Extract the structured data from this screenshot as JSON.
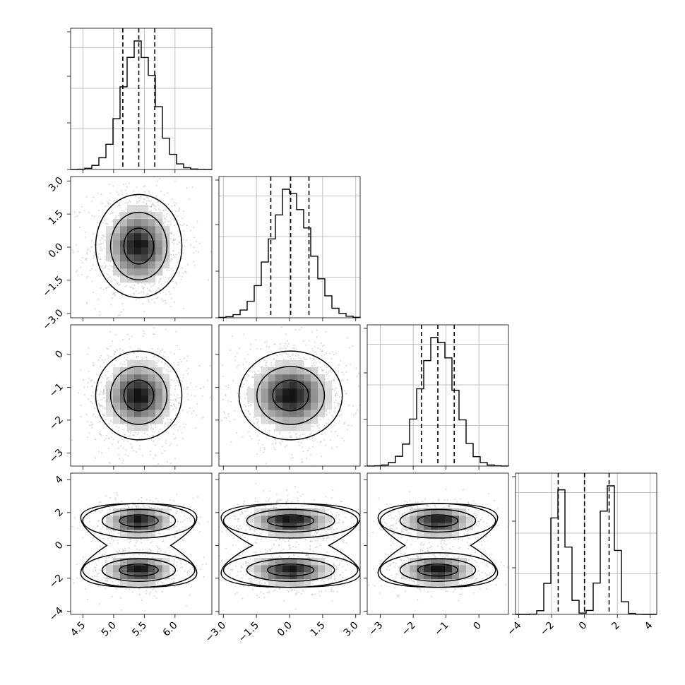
{
  "chart_data": {
    "type": "corner",
    "parameters": [
      {
        "id": "p0",
        "range": [
          4.3,
          6.6
        ],
        "ticks": [
          4.5,
          5.0,
          5.5,
          6.0
        ],
        "tick_labels": [
          "4.5",
          "5.0",
          "5.5",
          "6.0"
        ],
        "quantiles": [
          5.15,
          5.41,
          5.67
        ],
        "hist_mode": "unimodal",
        "hist": {
          "center": 5.41,
          "sigma": 0.27
        }
      },
      {
        "id": "p1",
        "range": [
          -3.2,
          3.2
        ],
        "ticks": [
          -3.0,
          -1.5,
          0.0,
          1.5,
          3.0
        ],
        "tick_labels": [
          "−3.0",
          "−1.5",
          "0.0",
          "1.5",
          "3.0"
        ],
        "quantiles": [
          -0.85,
          0.05,
          0.88
        ],
        "hist_mode": "unimodal",
        "hist": {
          "center": 0.05,
          "sigma": 0.9
        }
      },
      {
        "id": "p2",
        "range": [
          -3.4,
          0.9
        ],
        "ticks": [
          -3,
          -2,
          -1,
          0
        ],
        "tick_labels": [
          "−3",
          "−2",
          "−1",
          "0"
        ],
        "quantiles": [
          -1.75,
          -1.25,
          -0.75
        ],
        "hist_mode": "unimodal",
        "hist": {
          "center": -1.25,
          "sigma": 0.52
        }
      },
      {
        "id": "p3",
        "range": [
          -4.2,
          4.4
        ],
        "ticks": [
          -4,
          -2,
          0,
          2,
          4
        ],
        "tick_labels": [
          "−4",
          "−2",
          "0",
          "2",
          "4"
        ],
        "quantiles": [
          -1.6,
          0.0,
          1.5
        ],
        "hist_mode": "bimodal",
        "hist": {
          "modes": [
            -1.5,
            1.5
          ],
          "sigma": 0.45
        }
      }
    ],
    "contour_levels": [
      "inner",
      "middle",
      "outer"
    ],
    "grid": true,
    "colors": {
      "lines": "#000000",
      "grid": "#b0b0b0",
      "samples": "#bdbdbd"
    }
  }
}
